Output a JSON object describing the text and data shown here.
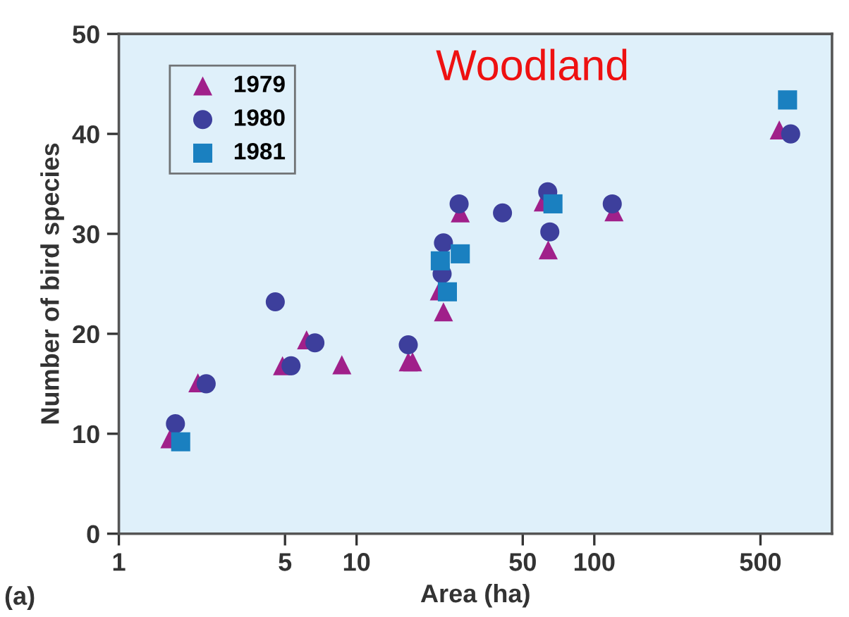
{
  "chart_data": {
    "type": "scatter",
    "title": "Woodland",
    "xlabel": "Area (ha)",
    "ylabel": "Number of bird species",
    "annotations": [
      "(a)"
    ],
    "log": "x",
    "xlim": [
      1,
      1000
    ],
    "xticks": [
      1,
      5,
      10,
      50,
      100,
      500
    ],
    "ylim": [
      0,
      50
    ],
    "yticks": [
      0,
      10,
      20,
      30,
      40,
      50
    ],
    "grid": false,
    "legend": "top left",
    "series": [
      {
        "name": "1979",
        "color": "#a0208a",
        "marker": "triangle",
        "x": [
          1.64,
          2.15,
          4.88,
          6.16,
          8.67,
          17.2,
          16.5,
          22.3,
          23.2,
          27.3,
          61,
          64,
          121,
          600
        ],
        "values": [
          9.5,
          15.1,
          16.8,
          19.4,
          16.9,
          17.2,
          17.2,
          24.3,
          22.2,
          32.1,
          33.2,
          28.4,
          32.2,
          40.4
        ]
      },
      {
        "name": "1980",
        "color": "#3d3f9c",
        "marker": "circle",
        "x": [
          1.73,
          2.33,
          4.55,
          5.3,
          6.68,
          16.5,
          23.2,
          22.9,
          27,
          41.1,
          63.7,
          65,
          119,
          670
        ],
        "values": [
          11.0,
          15.0,
          23.2,
          16.8,
          19.1,
          18.9,
          29.1,
          26.0,
          33.0,
          32.1,
          34.2,
          30.2,
          33.0,
          40.0
        ]
      },
      {
        "name": "1981",
        "color": "#1a80c0",
        "marker": "square",
        "x": [
          1.82,
          22.5,
          24.1,
          27.3,
          67,
          650
        ],
        "values": [
          9.2,
          27.3,
          24.2,
          28.0,
          33.0,
          43.4
        ]
      }
    ]
  }
}
